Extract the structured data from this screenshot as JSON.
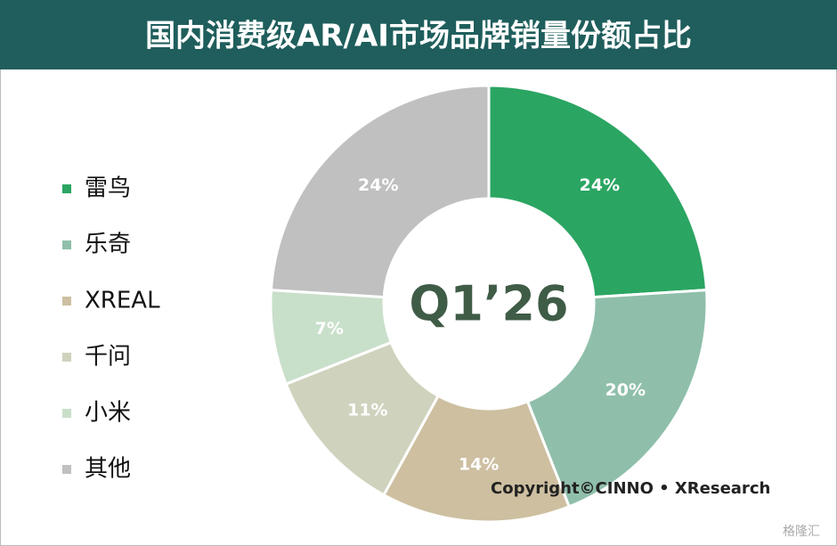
{
  "chart_data": {
    "type": "donut",
    "title": "国内消费级AR/AI市场品牌销量份额占比",
    "center_label": "Q1’26",
    "categories": [
      "雷鸟",
      "乐奇",
      "XREAL",
      "千问",
      "小米",
      "其他"
    ],
    "values": [
      24,
      20,
      14,
      11,
      7,
      24
    ],
    "value_labels": [
      "24%",
      "20%",
      "14%",
      "11%",
      "7%",
      "24%"
    ],
    "colors": [
      "#2ba562",
      "#8fbfaa",
      "#cdbfa0",
      "#cfd3bd",
      "#c8dfca",
      "#c0c0c0"
    ],
    "annotation": "Copyright©CINNO • XResearch",
    "watermark": "格隆汇"
  }
}
